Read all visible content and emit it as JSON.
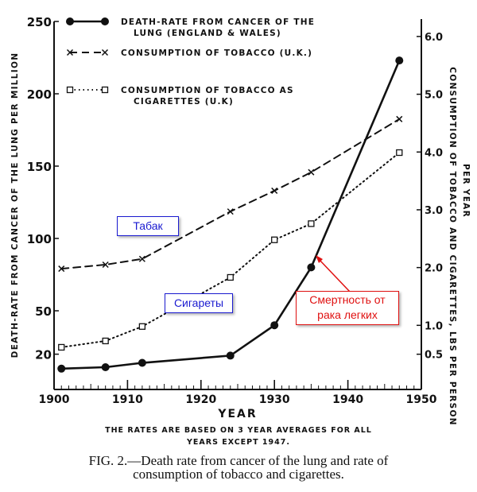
{
  "chart_data": {
    "type": "line",
    "title": "",
    "xlabel": "YEAR",
    "ylabel": "DEATH-RATE FROM CANCER OF THE LUNG PER MILLION",
    "ylabel_right": "CONSUMPTION OF TOBACCO AND CIGARETTES, LBS PER PERSON",
    "ylabel_right_2": "PER YEAR",
    "xlim": [
      1900,
      1950
    ],
    "ylim": [
      0,
      250
    ],
    "ylim_right": [
      0,
      6.26
    ],
    "x_ticks": [
      1900,
      1910,
      1920,
      1930,
      1940,
      1950
    ],
    "y_ticks": [
      20,
      50,
      100,
      150,
      200,
      250
    ],
    "y_ticks_right": [
      "0.5",
      "1.0",
      "2.0",
      "3.0",
      "4.0",
      "5.0",
      "6.0"
    ],
    "y_ticks_right_values": [
      0.5,
      1,
      2,
      3,
      4,
      5,
      6
    ],
    "grid": false,
    "legend_position": "top-left",
    "series": [
      {
        "name": "DEATH-RATE FROM CANCER OF THE",
        "name_line2": "LUNG  (ENGLAND & WALES)",
        "axis": "left",
        "style": "solid-dot",
        "x": [
          1901,
          1907,
          1912,
          1924,
          1930,
          1935,
          1947
        ],
        "values": [
          10,
          11,
          14,
          19,
          40,
          80,
          223
        ]
      },
      {
        "name": "CONSUMPTION  OF  TOBACCO (U.K.)",
        "axis": "right",
        "style": "dashed-x",
        "x": [
          1901,
          1907,
          1912,
          1924,
          1930,
          1935,
          1947
        ],
        "values": [
          1.98,
          2.05,
          2.15,
          2.97,
          3.33,
          3.65,
          4.57
        ]
      },
      {
        "name": "CONSUMPTION  OF  TOBACCO  AS",
        "name_line2": "CIGARETTES  (U.K)",
        "axis": "right",
        "style": "dotted-square",
        "x": [
          1901,
          1907,
          1912,
          1924,
          1930,
          1935,
          1947
        ],
        "values": [
          0.62,
          0.73,
          0.98,
          1.83,
          2.48,
          2.76,
          3.99
        ]
      }
    ],
    "annotations": {
      "tobacco": "Табак",
      "cigarettes": "Сигареты",
      "death_line1": "Смертность от",
      "death_line2": "рака легких"
    },
    "note_line1": "THE RATES ARE BASED ON 3 YEAR AVERAGES FOR ALL",
    "note_line2": "YEARS  EXCEPT  1947.",
    "caption_line1": "FIG. 2.—Death rate from cancer of the lung and rate of",
    "caption_line2": "consumption of tobacco and cigarettes.",
    "colors": {
      "ink": "#111111",
      "annotation_blue": "#1a1ad0",
      "annotation_red": "#e01010"
    }
  }
}
